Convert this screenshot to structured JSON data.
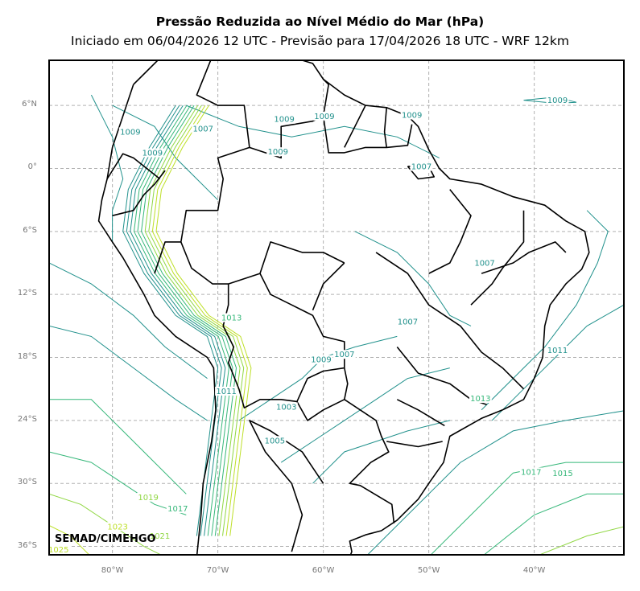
{
  "title": "Pressão Reduzida ao Nível Médio do Mar (hPa)",
  "subtitle": "Iniciado em 06/04/2026 12 UTC - Previsão para 17/04/2026 18 UTC - WRF 12km",
  "credit": "SEMAD/CIMEHGO",
  "extent": {
    "lon_min": -86,
    "lon_max": -31.5,
    "lat_min": -36.8,
    "lat_max": 10.3
  },
  "lat_ticks": [
    {
      "value": 6,
      "label": "6°N"
    },
    {
      "value": 0,
      "label": "0°"
    },
    {
      "value": -6,
      "label": "6°S"
    },
    {
      "value": -12,
      "label": "12°S"
    },
    {
      "value": -18,
      "label": "18°S"
    },
    {
      "value": -24,
      "label": "24°S"
    },
    {
      "value": -30,
      "label": "30°S"
    },
    {
      "value": -36,
      "label": "36°S"
    }
  ],
  "lon_ticks": [
    {
      "value": -80,
      "label": "80°W"
    },
    {
      "value": -70,
      "label": "70°W"
    },
    {
      "value": -60,
      "label": "60°W"
    },
    {
      "value": -50,
      "label": "50°W"
    },
    {
      "value": -40,
      "label": "40°W"
    }
  ],
  "contour_labels": [
    {
      "text": "1009",
      "lon": -78.3,
      "lat": 3.3
    },
    {
      "text": "1009",
      "lon": -76.2,
      "lat": 1.3
    },
    {
      "text": "1007",
      "lon": -71.4,
      "lat": 3.6
    },
    {
      "text": "1009",
      "lon": -63.7,
      "lat": 4.5
    },
    {
      "text": "1009",
      "lon": -64.3,
      "lat": 1.4
    },
    {
      "text": "1009",
      "lon": -59.9,
      "lat": 4.8
    },
    {
      "text": "1009",
      "lon": -51.6,
      "lat": 4.9
    },
    {
      "text": "1009",
      "lon": -37.8,
      "lat": 6.3
    },
    {
      "text": "1007",
      "lon": -50.7,
      "lat": 0.0
    },
    {
      "text": "1007",
      "lon": -44.7,
      "lat": -9.2
    },
    {
      "text": "1007",
      "lon": -52.0,
      "lat": -14.8
    },
    {
      "text": "1009",
      "lon": -60.2,
      "lat": -18.4
    },
    {
      "text": "1007",
      "lon": -58.0,
      "lat": -17.9
    },
    {
      "text": "1011",
      "lon": -37.8,
      "lat": -17.5
    },
    {
      "text": "1003",
      "lon": -63.5,
      "lat": -22.9
    },
    {
      "text": "1005",
      "lon": -64.6,
      "lat": -26.1
    },
    {
      "text": "1013",
      "lon": -45.1,
      "lat": -22.1
    },
    {
      "text": "1017",
      "lon": -40.3,
      "lat": -29.1
    },
    {
      "text": "1015",
      "lon": -37.3,
      "lat": -29.2
    },
    {
      "text": "1019",
      "lon": -76.6,
      "lat": -31.5
    },
    {
      "text": "1017",
      "lon": -73.8,
      "lat": -32.6
    },
    {
      "text": "1023",
      "lon": -79.5,
      "lat": -34.3
    },
    {
      "text": "1021",
      "lon": -75.5,
      "lat": -35.2
    },
    {
      "text": "1025",
      "lon": -85.1,
      "lat": -36.5
    },
    {
      "text": "1011",
      "lon": -69.2,
      "lat": -21.4
    },
    {
      "text": "1013",
      "lon": -68.7,
      "lat": -14.4
    }
  ],
  "colors": {
    "frame": "#000000",
    "grid": "#b0b0b0",
    "border": "#000000",
    "iso_low": "#21918c",
    "iso_mid": "#35b779",
    "iso_high": "#90d743",
    "iso_very_high": "#bddf26"
  }
}
